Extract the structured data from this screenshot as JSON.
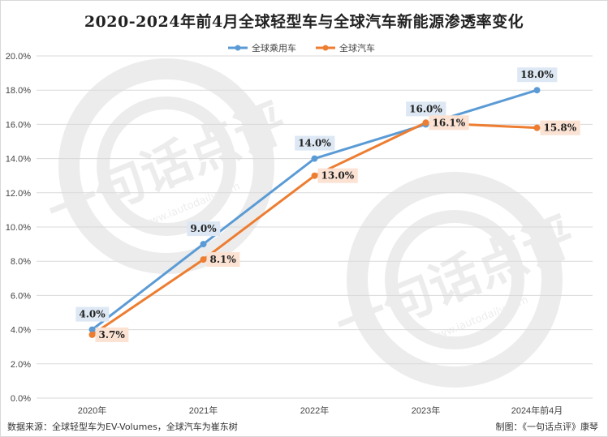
{
  "colors": {
    "series_1": "#5b9bd5",
    "series_2": "#ed7d31",
    "label_bg_1": "#dde8f4",
    "label_bg_2": "#fbe2d3",
    "grid": "#d9d9d9"
  },
  "footer": {
    "source": "数据来源：全球轻型车为EV-Volumes，全球汽车为崔东树",
    "credit": "制图：《一句话点评》康琴"
  },
  "watermark": {
    "text": "一句话点评",
    "url": "www.iautodaily.com"
  },
  "chart_data": {
    "type": "line",
    "title": "2020-2024年前4月全球轻型车与全球汽车新能源渗透率变化",
    "xlabel": "",
    "ylabel": "",
    "categories": [
      "2020年",
      "2021年",
      "2022年",
      "2023年",
      "2024年前4月"
    ],
    "ylim": [
      0,
      20
    ],
    "yticks": [
      0,
      2,
      4,
      6,
      8,
      10,
      12,
      14,
      16,
      18,
      20
    ],
    "ytick_labels": [
      "0.0%",
      "2.0%",
      "4.0%",
      "6.0%",
      "8.0%",
      "10.0%",
      "12.0%",
      "14.0%",
      "16.0%",
      "18.0%",
      "20.0%"
    ],
    "grid": true,
    "legend_position": "top-center",
    "series": [
      {
        "name": "全球乘用车",
        "values": [
          4.0,
          9.0,
          14.0,
          16.0,
          18.0
        ],
        "labels": [
          "4.0%",
          "9.0%",
          "14.0%",
          "16.0%",
          "18.0%"
        ]
      },
      {
        "name": "全球汽车",
        "values": [
          3.7,
          8.1,
          13.0,
          16.1,
          15.8
        ],
        "labels": [
          "3.7%",
          "8.1%",
          "13.0%",
          "16.1%",
          "15.8%"
        ]
      }
    ]
  }
}
